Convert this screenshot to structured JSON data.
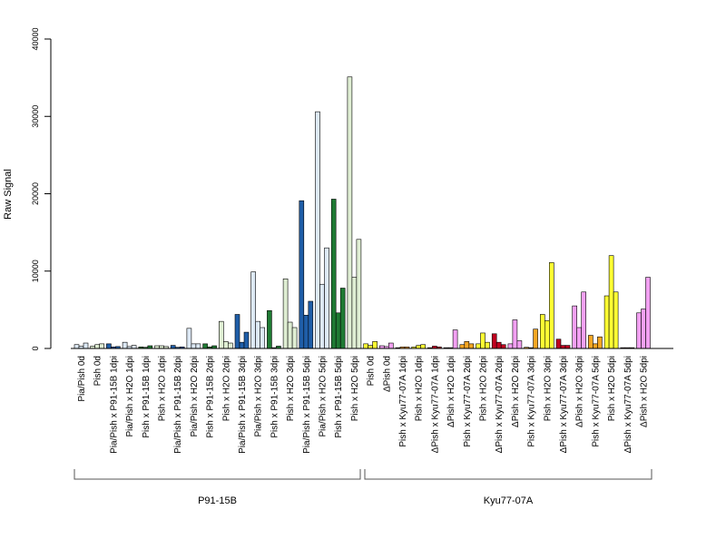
{
  "chart_data": {
    "type": "bar",
    "ylabel": "Raw Signal",
    "ylim": [
      0,
      40000
    ],
    "yticks": [
      "0",
      "10000",
      "20000",
      "30000",
      "40000"
    ],
    "categories": [
      "Pia/Pish 0d",
      "Pish 0d",
      "Pia/Pish x P91-15B 1dpi",
      "Pia/Pish x H2O 1dpi",
      "Pish x P91-15B 1dpi",
      "Pish x H2O 1dpi",
      "Pia/Pish x P91-15B 2dpi",
      "Pia/Pish x H2O 2dpi",
      "Pish x P91-15B 2dpi",
      "Pish x H2O 2dpi",
      "Pia/Pish x P91-15B 3dpi",
      "Pia/Pish x H2O 3dpi",
      "Pish x P91-15B 3dpi",
      "Pish x H2O 3dpi",
      "Pia/Pish x P91-15B 5dpi",
      "Pia/Pish x H2O 5dpi",
      "Pish x P91-15B 5dpi",
      "Pish x H2O 5dpi",
      "Pish 0d",
      "ΔPish 0d",
      "Pish x Kyu77-07A 1dpi",
      "Pish x H2O 1dpi",
      "ΔPish x Kyu77-07A 1dpi",
      "ΔPish x H2O 1dpi",
      "Pish x Kyu77-07A 2dpi",
      "Pish x H2O 2dpi",
      "ΔPish x Kyu77-07A 2dpi",
      "ΔPish x H2O 2dpi",
      "Pish x Kyu77-07A 3dpi",
      "Pish x H2O 3dpi",
      "ΔPish x Kyu77-07A 3dpi",
      "ΔPish x H2O 3dpi",
      "Pish x Kyu77-07A 5dpi",
      "Pish x H2O 5dpi",
      "ΔPish x Kyu77-07A 5dpi",
      "ΔPish x H2O 5dpi"
    ],
    "colors": [
      "#dde9f5",
      "#dfeed3",
      "#1f5ea8",
      "#dde9f5",
      "#1f7a33",
      "#dfeed3",
      "#1f5ea8",
      "#dde9f5",
      "#1f7a33",
      "#dfeed3",
      "#1f5ea8",
      "#dde9f5",
      "#1f7a33",
      "#dfeed3",
      "#1f5ea8",
      "#dde9f5",
      "#1f7a33",
      "#dfeed3",
      "#ffff33",
      "#f2a0f2",
      "#f5a623",
      "#ffff33",
      "#c00020",
      "#f2a0f2",
      "#f5a623",
      "#ffff33",
      "#c00020",
      "#f2a0f2",
      "#f5a623",
      "#ffff33",
      "#c00020",
      "#f2a0f2",
      "#f5a623",
      "#ffff33",
      "#c00020",
      "#f2a0f2"
    ],
    "series": [
      {
        "values": [
          500,
          300,
          600,
          800,
          200,
          350,
          400,
          2600,
          600,
          3500,
          4400,
          9900,
          4900,
          9000,
          19100,
          30600,
          19300,
          35100,
          600,
          350,
          100,
          200,
          100,
          100,
          500,
          600,
          1900,
          600,
          150,
          4400,
          1200,
          5500,
          1700,
          6800,
          100,
          4600
        ]
      },
      {
        "values": [
          300,
          500,
          200,
          250,
          150,
          350,
          150,
          600,
          200,
          900,
          800,
          3500,
          100,
          3400,
          4300,
          8300,
          4600,
          9200,
          400,
          250,
          200,
          400,
          300,
          100,
          900,
          2000,
          800,
          3700,
          100,
          3600,
          400,
          2700,
          600,
          12000,
          100,
          5100
        ]
      },
      {
        "values": [
          700,
          600,
          250,
          400,
          350,
          250,
          200,
          600,
          350,
          700,
          2100,
          2700,
          300,
          2700,
          6100,
          13000,
          7800,
          14100,
          900,
          700,
          200,
          500,
          200,
          2400,
          600,
          800,
          500,
          1000,
          2500,
          11100,
          400,
          7300,
          1500,
          7300,
          100,
          9200
        ]
      }
    ],
    "groups": [
      {
        "label": "P91-15B"
      },
      {
        "label": "Kyu77-07A"
      }
    ]
  }
}
